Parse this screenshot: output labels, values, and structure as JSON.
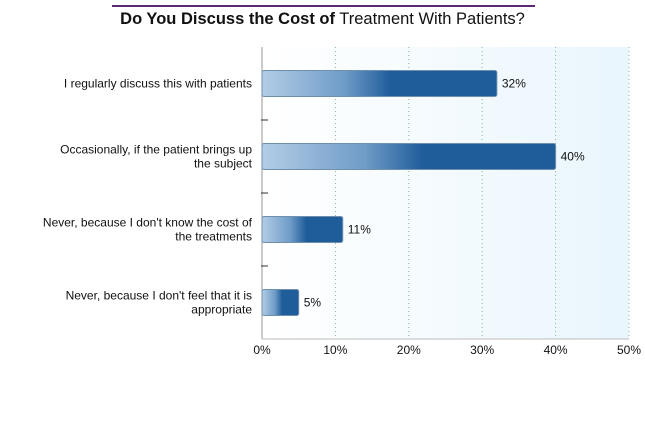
{
  "chart_data": {
    "type": "bar",
    "orientation": "horizontal",
    "title_bold": "Do You Discuss the Cost of",
    "title_rest": "Treatment With Patients?",
    "categories": [
      "I regularly discuss this with patients",
      "Occasionally, if the patient brings up the subject",
      "Never, because I don't know the cost of the treatments",
      "Never, because I don't feel that it is appropriate"
    ],
    "values": [
      32,
      40,
      11,
      5
    ],
    "value_labels": [
      "32%",
      "40%",
      "11%",
      "5%"
    ],
    "xlim": [
      0,
      50
    ],
    "ticks": [
      "0%",
      "10%",
      "20%",
      "30%",
      "40%",
      "50%"
    ],
    "grid": true,
    "colors": {
      "bar_dark": "#1f5c9a",
      "bar_light": "#b3cde6",
      "title_rule": "#5b2a6e"
    }
  }
}
